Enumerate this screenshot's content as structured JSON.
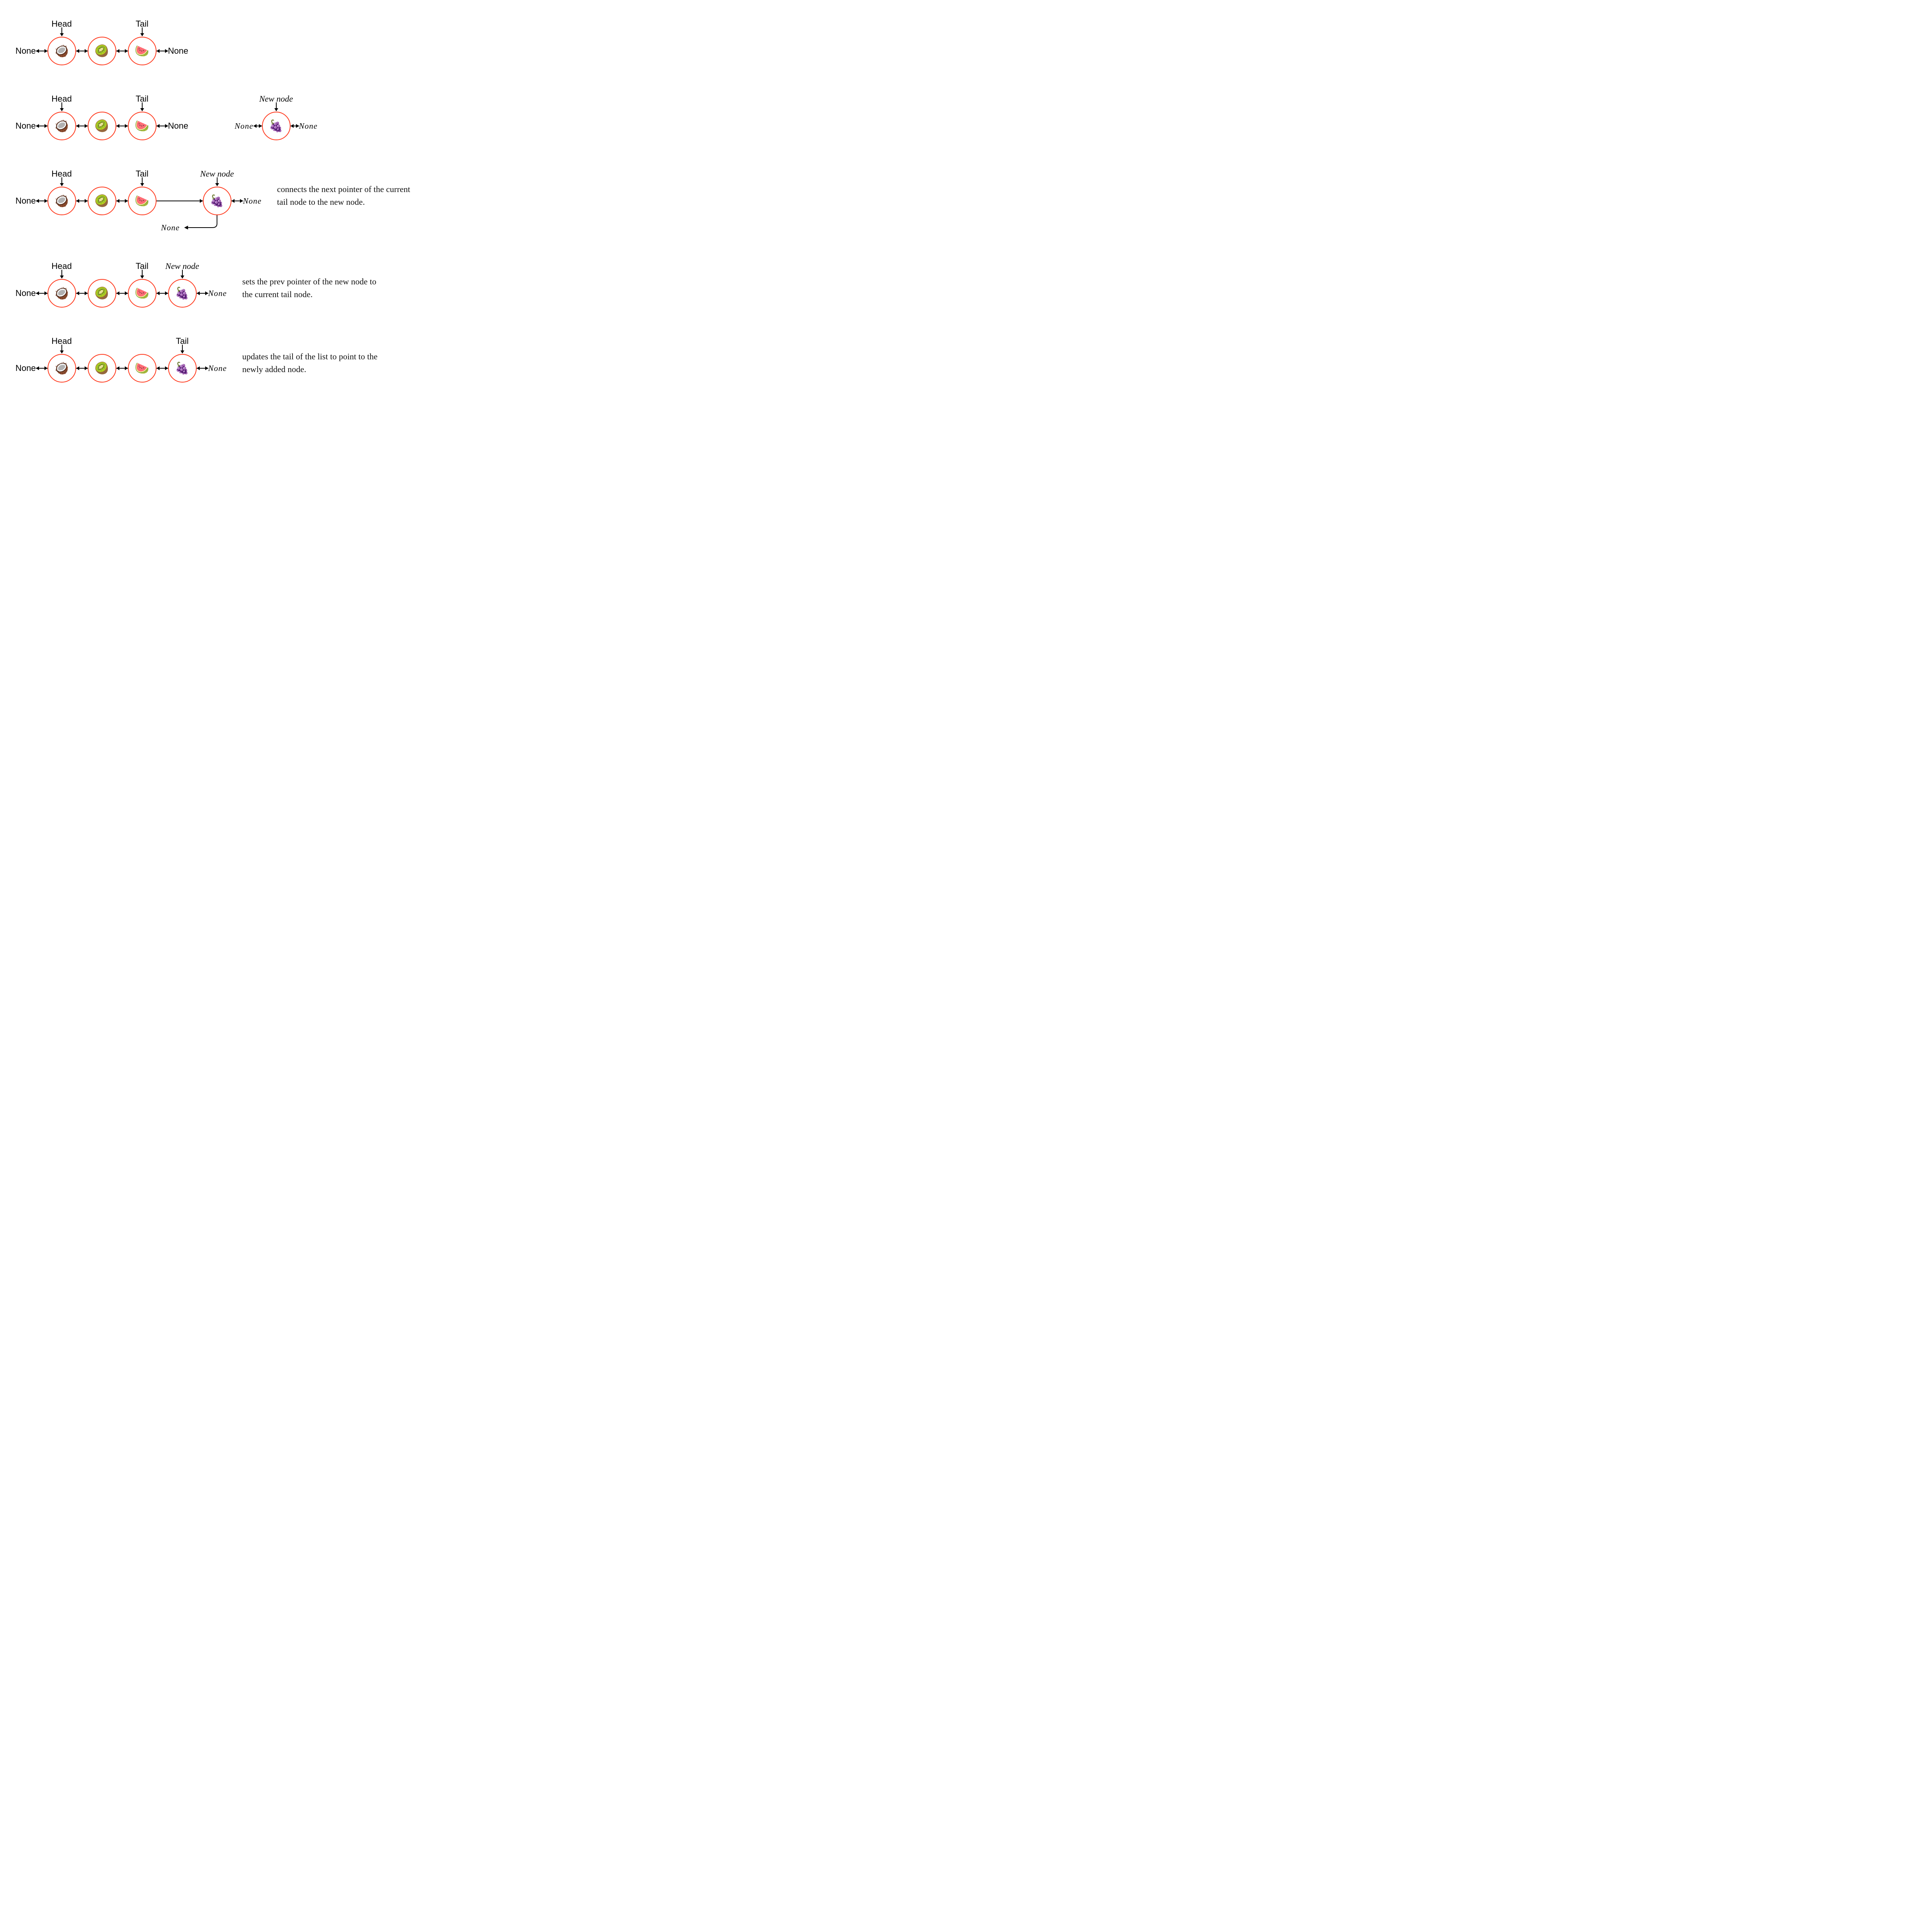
{
  "labels": {
    "head": "Head",
    "tail": "Tail",
    "none": "None",
    "none_script": "None",
    "new_node": "New node"
  },
  "styling": {
    "node_border_color": "#ff3b1f",
    "node_border_width": 2,
    "node_diameter": 70,
    "background_color": "#ffffff",
    "arrow_color": "#000000",
    "label_fontsize": 22,
    "caption_fontsize": 22,
    "label_font": "sans-serif",
    "script_font": "cursive",
    "short_link_width": 30,
    "node_gap_link_width": 30
  },
  "fruits": {
    "coconut": "🥥",
    "kiwi": "🥝",
    "watermelon": "🍉",
    "grapes": "🍇"
  },
  "steps": [
    {
      "id": "step1",
      "main_list": {
        "left_none": "plain",
        "nodes": [
          {
            "fruit": "coconut",
            "top_label": "head"
          },
          {
            "fruit": "kiwi"
          },
          {
            "fruit": "watermelon",
            "top_label": "tail"
          }
        ],
        "right_none": "plain",
        "links": [
          "bi",
          "bi",
          "bi",
          "bi"
        ]
      },
      "caption": null
    },
    {
      "id": "step2",
      "main_list": {
        "left_none": "plain",
        "nodes": [
          {
            "fruit": "coconut",
            "top_label": "head"
          },
          {
            "fruit": "kiwi"
          },
          {
            "fruit": "watermelon",
            "top_label": "tail"
          }
        ],
        "right_none": "plain",
        "links": [
          "bi",
          "bi",
          "bi",
          "bi"
        ]
      },
      "detached": {
        "left_none": "script",
        "node": {
          "fruit": "grapes",
          "top_label": "new_node"
        },
        "right_none": "script",
        "gap_before": 120
      },
      "caption": null
    },
    {
      "id": "step3",
      "main_list": {
        "left_none": "plain",
        "nodes": [
          {
            "fruit": "coconut",
            "top_label": "head"
          },
          {
            "fruit": "kiwi"
          },
          {
            "fruit": "watermelon",
            "top_label": "tail"
          },
          {
            "fruit": "grapes",
            "top_label": "new_node",
            "top_style": "script"
          }
        ],
        "right_none": "script",
        "links": [
          "bi",
          "bi",
          "bi",
          "right_long",
          "bi"
        ],
        "long_link_width": 120,
        "dangling_prev_from_node_index": 3,
        "dangling_prev_label": "none_script"
      },
      "caption": "connects the next pointer of the current tail node to the new node."
    },
    {
      "id": "step4",
      "main_list": {
        "left_none": "plain",
        "nodes": [
          {
            "fruit": "coconut",
            "top_label": "head"
          },
          {
            "fruit": "kiwi"
          },
          {
            "fruit": "watermelon",
            "top_label": "tail"
          },
          {
            "fruit": "grapes",
            "top_label": "new_node",
            "top_style": "script"
          }
        ],
        "right_none": "script",
        "links": [
          "bi",
          "bi",
          "bi",
          "bi",
          "bi"
        ]
      },
      "caption": "sets the prev pointer of the new node to the current tail node."
    },
    {
      "id": "step5",
      "main_list": {
        "left_none": "plain",
        "nodes": [
          {
            "fruit": "coconut",
            "top_label": "head"
          },
          {
            "fruit": "kiwi"
          },
          {
            "fruit": "watermelon"
          },
          {
            "fruit": "grapes",
            "top_label": "tail"
          }
        ],
        "right_none": "script",
        "links": [
          "bi",
          "bi",
          "bi",
          "bi",
          "bi"
        ]
      },
      "caption": "updates the tail of the list to point to the newly added node."
    }
  ]
}
